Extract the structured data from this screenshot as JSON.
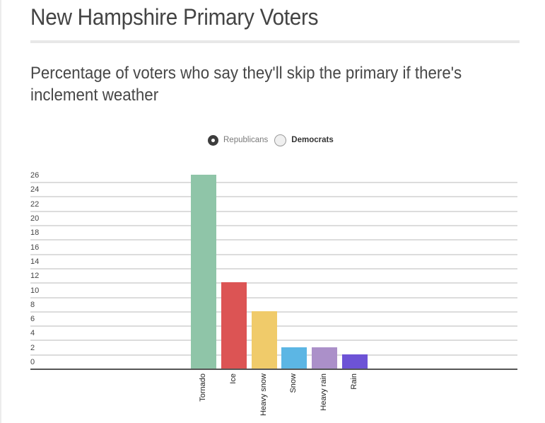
{
  "header": {
    "title": "New Hampshire Primary Voters",
    "subtitle": "Percentage of voters who say they'll skip the primary if there's inclement weather"
  },
  "legend": {
    "items": [
      {
        "label": "Republicans",
        "selected": true
      },
      {
        "label": "Democrats",
        "selected": false
      }
    ]
  },
  "chart_data": {
    "type": "bar",
    "title": "Percentage of voters who say they'll skip the primary if there's inclement weather",
    "xlabel": "",
    "ylabel": "",
    "categories": [
      "Tornado",
      "Ice",
      "Heavy snow",
      "Snow",
      "Heavy rain",
      "Rain"
    ],
    "values": [
      27,
      12,
      8,
      3,
      3,
      2
    ],
    "colors": [
      "#8fc5a8",
      "#dc5454",
      "#f0cb6a",
      "#5cb6e4",
      "#ab90c9",
      "#6d53d6"
    ],
    "series_name": "Republicans",
    "ylim": [
      0,
      26
    ],
    "yticks": [
      0,
      2,
      4,
      6,
      8,
      10,
      12,
      14,
      16,
      18,
      20,
      22,
      24,
      26
    ],
    "grid": true,
    "legend_position": "top"
  }
}
